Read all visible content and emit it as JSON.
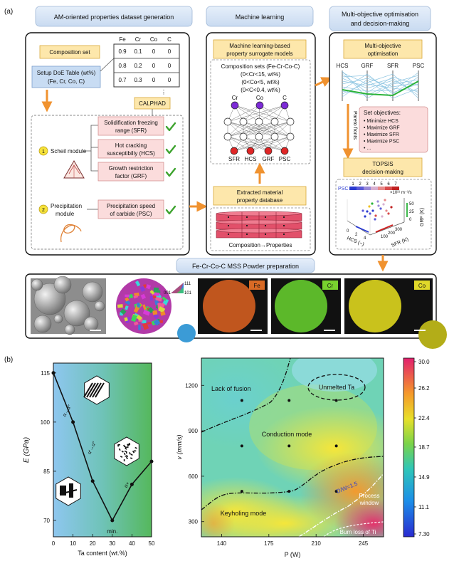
{
  "panel_a": {
    "label": "(a)",
    "col1_title": "AM-oriented properties dataset generation",
    "col2_title": "Machine learning",
    "col3_title_line1": "Multi-objective optimisation",
    "col3_title_line2": "and decision-making",
    "composition_set": "Composition set",
    "doe_line1": "Setup DoE Table (wt%)",
    "doe_line2": "(Fe, Cr, Co, C)",
    "table_headers": [
      "Fe",
      "Cr",
      "Co",
      "C"
    ],
    "table_rows": [
      [
        "0.9",
        "0.1",
        "0",
        "0"
      ],
      [
        "0.8",
        "0.2",
        "0",
        "0"
      ],
      [
        "0.7",
        "0.3",
        "0",
        "0"
      ]
    ],
    "table_more": "⋮",
    "calphad": "CALPHAD",
    "step1_num": "1",
    "scheil": "Scheil module",
    "step2_num": "2",
    "precip_line1": "Precipitation",
    "precip_line2": "module",
    "sfr_line1": "Solidification freezing",
    "sfr_line2": "range (SFR)",
    "hcs_line1": "Hot cracking",
    "hcs_line2": "susceptibiliy (HCS)",
    "grf_line1": "Growth restriction",
    "grf_line2": "factor (GRF)",
    "psc_line1": "Precipitation speed",
    "psc_line2": "of carbide (PSC)",
    "ml_line1": "Machine learning-based",
    "ml_line2": "property surrogate models",
    "comp_sets": "Composition sets (Fe-Cr-Co-C)",
    "cond1": "(0<Cr<15, wt%)",
    "cond2": "(0<Co<5, wt%)",
    "cond3": "(0<C<0.4, wt%)",
    "inputs": [
      "Cr",
      "Co",
      "C"
    ],
    "outputs": [
      "SFR",
      "HCS",
      "GRF",
      "PSC"
    ],
    "extract_line1": "Extracted material",
    "extract_line2": "property database",
    "comp_props": "Composition→Properties",
    "mo_line1": "Multi-objective",
    "mo_line2": "optimisation",
    "pc_axes": [
      "HCS",
      "GRF",
      "SFR",
      "PSC"
    ],
    "pareto": "Pareto fronts",
    "set_obj": "Set objectives:",
    "objectives": [
      "• Minimize HCS",
      "• Maximize GRF",
      "• Maximize SFR",
      "• Maximize PSC",
      "• ..."
    ],
    "topsis_line1": "TOPSIS",
    "topsis_line2": "decision-making",
    "psc_label": "PSC",
    "psc_ticks": [
      "1",
      "2",
      "3",
      "4",
      "5",
      "6",
      "7"
    ],
    "psc_unit": "×10²¹ m⁻³/s",
    "grf_axis": "GRF (K)",
    "grf_ticks": [
      "50",
      "25",
      "0"
    ],
    "sfr_axis": "SFR (K)",
    "sfr_ticks": [
      "300",
      "200",
      "100"
    ],
    "hcs_axis": "HCS (~)",
    "hcs_ticks": [
      "0",
      "2",
      "4"
    ],
    "powder_title": "Fe-Cr-Co-C MSS Powder preparation",
    "ebsd_legend": [
      "111",
      "001",
      "101"
    ],
    "element_labels": [
      "Fe",
      "Cr",
      "Co"
    ]
  },
  "panel_b": {
    "label": "(b)",
    "left_ylabel": "E (GPa)",
    "left_xlabel": "Ta content (wt.%)",
    "left_yticks": [
      "115",
      "100",
      "85",
      "70"
    ],
    "left_xticks": [
      "0",
      "10",
      "20",
      "30",
      "40",
      "50"
    ],
    "phase_labels": [
      "α→α″",
      "α′→α″",
      "α+"
    ],
    "min_label": "min.",
    "right_ylabel": "v (mm/s)",
    "right_xlabel": "P (W)",
    "right_yticks": [
      "1200",
      "900",
      "600",
      "300"
    ],
    "right_xticks": [
      "140",
      "175",
      "210",
      "245"
    ],
    "region_labels": {
      "lack_of_fusion": "Lack of fusion",
      "unmelted": "Unmelted Ta",
      "conduction": "Conduction mode",
      "keyholing": "Keyholing mode",
      "dw": "D/W=1.5",
      "process_line1": "Process",
      "process_line2": "window",
      "burn": "Burn loss of Ti"
    },
    "colorbar_ticks": [
      "30.0",
      "26.2",
      "22.4",
      "18.7",
      "14.9",
      "11.1",
      "7.30"
    ]
  },
  "chart_data": [
    {
      "type": "line",
      "xlabel": "Ta content (wt.%)",
      "ylabel": "E (GPa)",
      "xlim": [
        0,
        50
      ],
      "ylim": [
        65,
        118
      ],
      "x": [
        0,
        10,
        20,
        30,
        40,
        50
      ],
      "series": [
        {
          "values": [
            115,
            100,
            82,
            70,
            81,
            88
          ]
        }
      ],
      "grid": false
    },
    {
      "type": "heatmap",
      "xlabel": "P (W)",
      "ylabel": "v (mm/s)",
      "xlim": [
        125,
        260
      ],
      "ylim": [
        200,
        1380
      ],
      "colorbar_range": [
        7.3,
        30.0
      ],
      "points": [
        [
          155,
          1100
        ],
        [
          190,
          1100
        ],
        [
          225,
          1100
        ],
        [
          155,
          800
        ],
        [
          190,
          800
        ],
        [
          225,
          800
        ],
        [
          155,
          500
        ],
        [
          190,
          500
        ],
        [
          225,
          500
        ]
      ]
    }
  ]
}
